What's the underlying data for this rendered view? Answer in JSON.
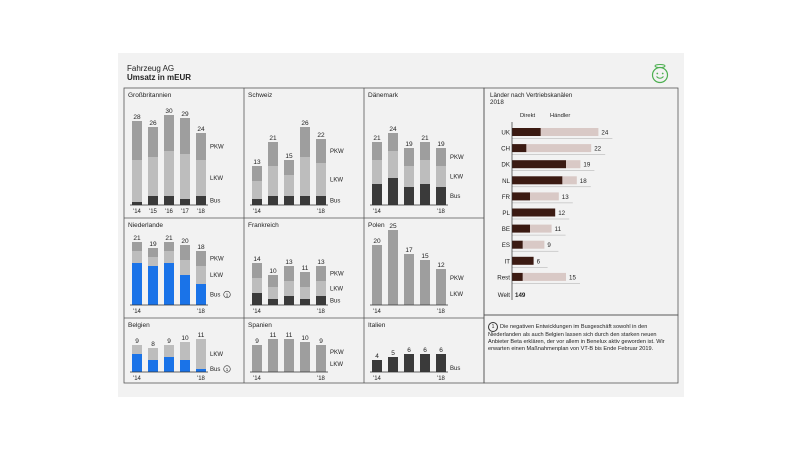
{
  "header": {
    "company": "Fahrzeug AG",
    "subtitle": "Umsatz in mEUR"
  },
  "footnote": {
    "marker": "1",
    "text": "Die negativen Entwicklungen im Busgeschäft sowohl in den Niederlanden als auch Belgien lassen sich durch den starken neuen Anbieter Beta erklären, der vor allem in Benelux aktiv geworden ist. Wir erwarten einen Maßnahmenplan von VT-B bis Ende Februar 2019."
  },
  "colors": {
    "pkw": "#9e9e9e",
    "lkw": "#bdbdbd",
    "bus": "#3a3a3a",
    "bus_highlight": "#1a73e8",
    "direkt": "#3b1a12",
    "haendler": "#d9c9c6",
    "frame": "#555555"
  },
  "icons": {
    "corner": "smiley-icon"
  },
  "chart_data": [
    {
      "type": "bar",
      "stacked": true,
      "title": "Großbritannien",
      "categories": [
        "'14",
        "'15",
        "'16",
        "'17",
        "'18"
      ],
      "tick_labels": [
        "'14",
        "'15",
        "'16",
        "'17",
        "'18"
      ],
      "totals": [
        28,
        26,
        30,
        29,
        24
      ],
      "series": [
        {
          "name": "Bus",
          "values": [
            1,
            3,
            3,
            2,
            3
          ]
        },
        {
          "name": "LKW",
          "values": [
            14,
            13,
            15,
            15,
            12
          ]
        },
        {
          "name": "PKW",
          "values": [
            13,
            10,
            12,
            12,
            9
          ]
        }
      ]
    },
    {
      "type": "bar",
      "stacked": true,
      "title": "Schweiz",
      "categories": [
        "'14",
        "'15",
        "'16",
        "'17",
        "'18"
      ],
      "tick_labels": [
        "'14",
        "",
        "",
        "",
        "'18"
      ],
      "totals": [
        13,
        21,
        15,
        26,
        22
      ],
      "series": [
        {
          "name": "Bus",
          "values": [
            2,
            3,
            3,
            3,
            3
          ]
        },
        {
          "name": "LKW",
          "values": [
            6,
            10,
            7,
            13,
            11
          ]
        },
        {
          "name": "PKW",
          "values": [
            5,
            8,
            5,
            10,
            8
          ]
        }
      ]
    },
    {
      "type": "bar",
      "stacked": true,
      "title": "Dänemark",
      "categories": [
        "'14",
        "'15",
        "'16",
        "'17",
        "'18"
      ],
      "tick_labels": [
        "'14",
        "",
        "",
        "",
        "'18"
      ],
      "totals": [
        21,
        24,
        19,
        21,
        19
      ],
      "series": [
        {
          "name": "Bus",
          "values": [
            7,
            9,
            6,
            7,
            6
          ]
        },
        {
          "name": "LKW",
          "values": [
            8,
            9,
            7,
            8,
            7
          ]
        },
        {
          "name": "PKW",
          "values": [
            6,
            6,
            6,
            6,
            6
          ]
        }
      ]
    },
    {
      "type": "bar",
      "stacked": true,
      "title": "Niederlande",
      "categories": [
        "'14",
        "'15",
        "'16",
        "'17",
        "'18"
      ],
      "tick_labels": [
        "'14",
        "",
        "",
        "",
        "'18"
      ],
      "totals": [
        21,
        19,
        21,
        20,
        18
      ],
      "bus_highlight": true,
      "bus_footnote": "1",
      "series": [
        {
          "name": "Bus",
          "values": [
            14,
            13,
            14,
            10,
            7
          ]
        },
        {
          "name": "LKW",
          "values": [
            4,
            3,
            4,
            5,
            6
          ]
        },
        {
          "name": "PKW",
          "values": [
            3,
            3,
            3,
            5,
            5
          ]
        }
      ]
    },
    {
      "type": "bar",
      "stacked": true,
      "title": "Frankreich",
      "categories": [
        "'14",
        "'15",
        "'16",
        "'17",
        "'18"
      ],
      "tick_labels": [
        "'14",
        "",
        "",
        "",
        "'18"
      ],
      "totals": [
        14,
        10,
        13,
        11,
        13
      ],
      "series": [
        {
          "name": "Bus",
          "values": [
            4,
            2,
            3,
            2,
            3
          ]
        },
        {
          "name": "LKW",
          "values": [
            5,
            4,
            5,
            4,
            5
          ]
        },
        {
          "name": "PKW",
          "values": [
            5,
            4,
            5,
            5,
            5
          ]
        }
      ]
    },
    {
      "type": "bar",
      "stacked": false,
      "title": "Polen",
      "categories": [
        "'14",
        "'15",
        "'16",
        "'17",
        "'18"
      ],
      "tick_labels": [
        "'14",
        "",
        "",
        "",
        "'18"
      ],
      "values": [
        20,
        25,
        17,
        15,
        12
      ],
      "segment_labels": [
        "PKW",
        "LKW"
      ]
    },
    {
      "type": "bar",
      "stacked": true,
      "title": "Belgien",
      "categories": [
        "'14",
        "'15",
        "'16",
        "'17",
        "'18"
      ],
      "tick_labels": [
        "'14",
        "",
        "",
        "",
        "'18"
      ],
      "totals": [
        9,
        8,
        9,
        10,
        11
      ],
      "bus_highlight": true,
      "bus_footnote": "1",
      "series": [
        {
          "name": "Bus",
          "values": [
            6,
            4,
            5,
            4,
            1
          ]
        },
        {
          "name": "LKW",
          "values": [
            3,
            4,
            4,
            6,
            10
          ]
        }
      ]
    },
    {
      "type": "bar",
      "stacked": false,
      "title": "Spanien",
      "categories": [
        "'14",
        "'15",
        "'16",
        "'17",
        "'18"
      ],
      "tick_labels": [
        "'14",
        "",
        "",
        "",
        "'18"
      ],
      "values": [
        9,
        11,
        11,
        10,
        9
      ],
      "segment_labels": [
        "PKW",
        "LKW"
      ]
    },
    {
      "type": "bar",
      "stacked": false,
      "title": "Italien",
      "categories": [
        "'14",
        "'15",
        "'16",
        "'17",
        "'18"
      ],
      "tick_labels": [
        "'14",
        "",
        "",
        "",
        "'18"
      ],
      "values": [
        4,
        5,
        6,
        6,
        6
      ],
      "segment_labels": [
        "Bus"
      ]
    },
    {
      "type": "bar",
      "stacked": true,
      "orientation": "horizontal",
      "title": "Länder nach Vertriebskanälen",
      "subtitle": "2018",
      "series_labels": [
        "Direkt",
        "Händler"
      ],
      "categories": [
        "UK",
        "CH",
        "DK",
        "NL",
        "FR",
        "PL",
        "BE",
        "ES",
        "IT",
        "Rest"
      ],
      "totals": [
        24,
        22,
        19,
        18,
        13,
        12,
        11,
        9,
        6,
        15
      ],
      "series": [
        {
          "name": "Direkt",
          "values": [
            8,
            4,
            15,
            14,
            5,
            12,
            5,
            3,
            6,
            3
          ]
        },
        {
          "name": "Händler",
          "values": [
            16,
            18,
            4,
            4,
            8,
            0,
            6,
            6,
            0,
            12
          ]
        }
      ],
      "total_label": "Welt",
      "total_value": "149"
    }
  ]
}
